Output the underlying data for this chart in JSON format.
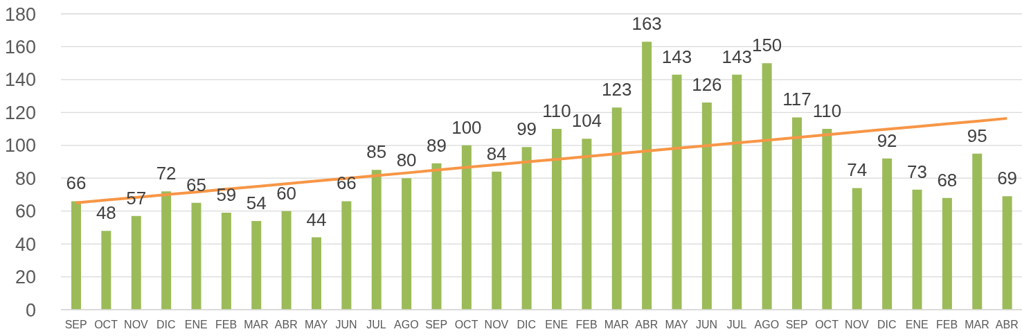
{
  "chart_data": {
    "type": "bar",
    "categories": [
      "SEP",
      "OCT",
      "NOV",
      "DIC",
      "ENE",
      "FEB",
      "MAR",
      "ABR",
      "MAY",
      "JUN",
      "JUL",
      "AGO",
      "SEP",
      "OCT",
      "NOV",
      "DIC",
      "ENE",
      "FEB",
      "MAR",
      "ABR",
      "MAY",
      "JUN",
      "JUL",
      "AGO",
      "SEP",
      "OCT",
      "NOV",
      "DIC",
      "ENE",
      "FEB",
      "MAR",
      "ABR"
    ],
    "series": [
      {
        "color": "#9bbb59",
        "values": [
          66,
          48,
          57,
          72,
          65,
          59,
          54,
          60,
          44,
          66,
          85,
          80,
          89,
          100,
          84,
          99,
          110,
          104,
          123,
          163,
          143,
          126,
          143,
          150,
          117,
          110,
          74,
          92,
          73,
          68,
          95,
          69
        ],
        "value_labels": [
          "66",
          "48",
          "57",
          "72",
          "65",
          "59",
          "54",
          "60",
          "44",
          "66",
          "85",
          "80",
          "89",
          "100",
          "84",
          "99",
          "110",
          "104",
          "123",
          "163",
          "143",
          "126",
          "143",
          "150",
          "117",
          "110",
          "74",
          "92",
          "73",
          "68",
          "95",
          "69"
        ]
      },
      {
        "type": "line",
        "color": "#f79646",
        "values": [
          65,
          66.7,
          68.3,
          70,
          71.6,
          73.3,
          74.9,
          76.6,
          78.3,
          79.9,
          81.6,
          83.2,
          84.9,
          86.6,
          88.2,
          89.9,
          91.5,
          93.2,
          94.8,
          96.5,
          98.2,
          99.8,
          101.5,
          103.1,
          104.8,
          106.4,
          108.1,
          109.8,
          111.4,
          113.1,
          114.7,
          116.4
        ]
      }
    ],
    "ylim": [
      0,
      180
    ],
    "yticks": [
      0,
      20,
      40,
      60,
      80,
      100,
      120,
      140,
      160,
      180
    ],
    "grid": "y"
  }
}
